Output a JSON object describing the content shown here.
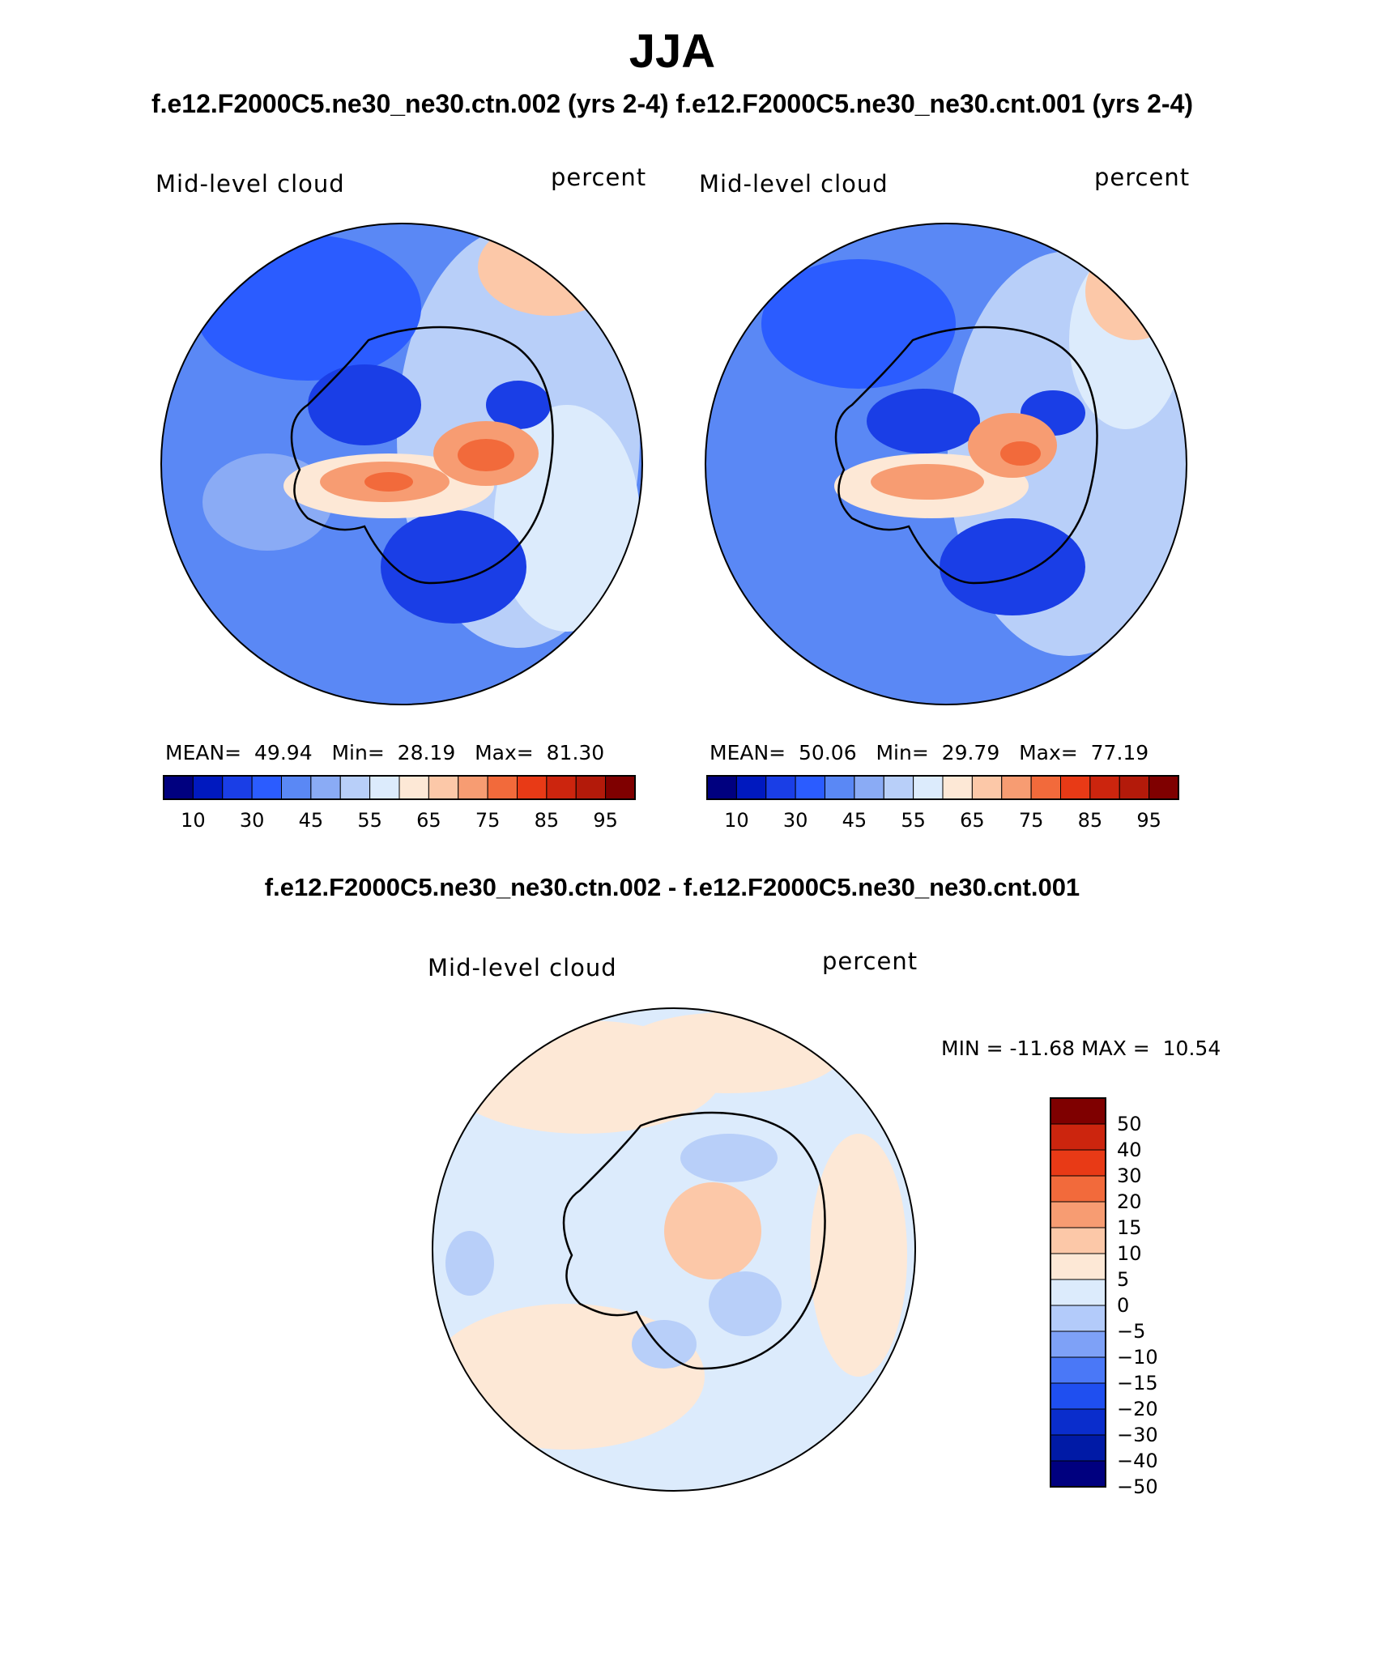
{
  "header": {
    "season": "JJA",
    "subtitle": "f.e12.F2000C5.ne30_ne30.ctn.002 (yrs 2-4) f.e12.F2000C5.ne30_ne30.cnt.001 (yrs 2-4)",
    "diff_title": "f.e12.F2000C5.ne30_ne30.ctn.002 - f.e12.F2000C5.ne30_ne30.cnt.001"
  },
  "colors": {
    "outline": "#000000",
    "coast": "#000000",
    "abs_palette": [
      "#00007f",
      "#0019bf",
      "#1a3ee6",
      "#2b5cff",
      "#5a88f5",
      "#8aabf5",
      "#b8cff9",
      "#dcebfc",
      "#fde8d6",
      "#fcc8a8",
      "#f79c72",
      "#f26a3b",
      "#e83a16",
      "#cc250e",
      "#b31a0a",
      "#7f0000"
    ],
    "diff_palette": [
      "#00007f",
      "#001aa6",
      "#0a2dcc",
      "#1f4ff0",
      "#4a78f7",
      "#7ea1f7",
      "#b3cbfa",
      "#dcebfc",
      "#fde8d6",
      "#fcc8a8",
      "#f79c72",
      "#f26a3b",
      "#e83a16",
      "#cc250e",
      "#7f0000"
    ]
  },
  "chart_data": [
    {
      "type": "heatmap",
      "projection": "south-polar-stereographic",
      "variable": "Mid-level cloud",
      "units": "percent",
      "case": "f.e12.F2000C5.ne30_ne30.ctn.002 (yrs 2-4)",
      "mean_label": "MEAN=",
      "mean": "49.94",
      "min_label": "Min=",
      "min": "28.19",
      "max_label": "Max=",
      "max": "81.30",
      "colorbar": {
        "orientation": "horizontal",
        "levels": [
          5,
          10,
          15,
          20,
          30,
          40,
          45,
          50,
          55,
          60,
          65,
          70,
          75,
          80,
          85,
          90,
          95
        ],
        "tick_labels": [
          "10",
          "30",
          "45",
          "55",
          "65",
          "75",
          "85",
          "95"
        ]
      }
    },
    {
      "type": "heatmap",
      "projection": "south-polar-stereographic",
      "variable": "Mid-level cloud",
      "units": "percent",
      "case": "f.e12.F2000C5.ne30_ne30.cnt.001 (yrs 2-4)",
      "mean_label": "MEAN=",
      "mean": "50.06",
      "min_label": "Min=",
      "min": "29.79",
      "max_label": "Max=",
      "max": "77.19",
      "colorbar": {
        "orientation": "horizontal",
        "levels": [
          5,
          10,
          15,
          20,
          30,
          40,
          45,
          50,
          55,
          60,
          65,
          70,
          75,
          80,
          85,
          90,
          95
        ],
        "tick_labels": [
          "10",
          "30",
          "45",
          "55",
          "65",
          "75",
          "85",
          "95"
        ]
      }
    },
    {
      "type": "heatmap",
      "projection": "south-polar-stereographic",
      "variable": "Mid-level cloud",
      "units": "percent",
      "case": "difference",
      "min_label": "MIN =",
      "min": "-11.68",
      "max_label": "MAX =",
      "max": "10.54",
      "colorbar": {
        "orientation": "vertical",
        "levels": [
          -50,
          -40,
          -30,
          -20,
          -15,
          -10,
          -5,
          0,
          5,
          10,
          15,
          20,
          30,
          40,
          50
        ],
        "tick_labels": [
          "50",
          "40",
          "30",
          "20",
          "15",
          "10",
          "5",
          "0",
          "−5",
          "−10",
          "−15",
          "−20",
          "−30",
          "−40",
          "−50"
        ]
      }
    }
  ]
}
